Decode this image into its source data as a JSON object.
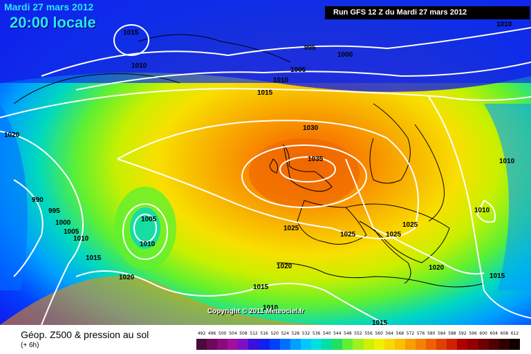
{
  "header": {
    "date": "Mardi 27 mars 2012",
    "time": "20:00 locale",
    "run": "Run GFS 12 Z du Mardi 27 mars 2012"
  },
  "copyright": "Copyright © 2011 Meteociel.fr",
  "legend": {
    "title": "Géop. Z500 & pression au sol",
    "subtitle": "(+ 6h)",
    "scale_values": [
      "492",
      "496",
      "500",
      "504",
      "508",
      "512",
      "516",
      "520",
      "524",
      "528",
      "532",
      "536",
      "540",
      "544",
      "548",
      "552",
      "556",
      "560",
      "564",
      "568",
      "572",
      "576",
      "580",
      "584",
      "588",
      "592",
      "596",
      "600",
      "604",
      "608",
      "612"
    ],
    "scale_colors": [
      "#4a0a3a",
      "#6e0a5a",
      "#8a0a7a",
      "#a0109a",
      "#7a10c8",
      "#3a10e0",
      "#1020f0",
      "#0040ff",
      "#0070ff",
      "#00a0ff",
      "#00c8ff",
      "#00e0e0",
      "#00e0a0",
      "#20e060",
      "#60f030",
      "#a0f020",
      "#d0f000",
      "#f0f000",
      "#f8d800",
      "#f8c000",
      "#f8a000",
      "#f88000",
      "#f06000",
      "#e04000",
      "#d02000",
      "#b00000",
      "#900000",
      "#700000",
      "#500000",
      "#300000",
      "#100000"
    ]
  },
  "isobars": [
    {
      "label": "1015",
      "x": 1015
    },
    {
      "label": "1010",
      "x": 1010
    },
    {
      "label": "995",
      "x": 995
    },
    {
      "label": "1000",
      "x": 1000
    },
    {
      "label": "1005",
      "x": 1005
    },
    {
      "label": "1010",
      "x": 1010
    },
    {
      "label": "1015",
      "x": 1015
    },
    {
      "label": "1010",
      "x": 1010
    },
    {
      "label": "1020",
      "x": 1020
    },
    {
      "label": "1030",
      "x": 1030
    },
    {
      "label": "1035",
      "x": 1035
    },
    {
      "label": "990",
      "x": 990
    },
    {
      "label": "995",
      "x": 995
    },
    {
      "label": "1000",
      "x": 1000
    },
    {
      "label": "1005",
      "x": 1005
    },
    {
      "label": "1010",
      "x": 1010
    },
    {
      "label": "1005",
      "x": 1005
    },
    {
      "label": "1010",
      "x": 1010
    },
    {
      "label": "1015",
      "x": 1015
    },
    {
      "label": "1020",
      "x": 1020
    },
    {
      "label": "1025",
      "x": 1025
    },
    {
      "label": "1025",
      "x": 1025
    },
    {
      "label": "1025",
      "x": 1025
    },
    {
      "label": "1025",
      "x": 1025
    },
    {
      "label": "1020",
      "x": 1020
    },
    {
      "label": "1015",
      "x": 1015
    },
    {
      "label": "1010",
      "x": 1010
    },
    {
      "label": "1010",
      "x": 1010
    },
    {
      "label": "1020",
      "x": 1020
    },
    {
      "label": "1015",
      "x": 1015
    },
    {
      "label": "1015",
      "x": 1015
    },
    {
      "label": "1010",
      "x": 1010
    }
  ]
}
